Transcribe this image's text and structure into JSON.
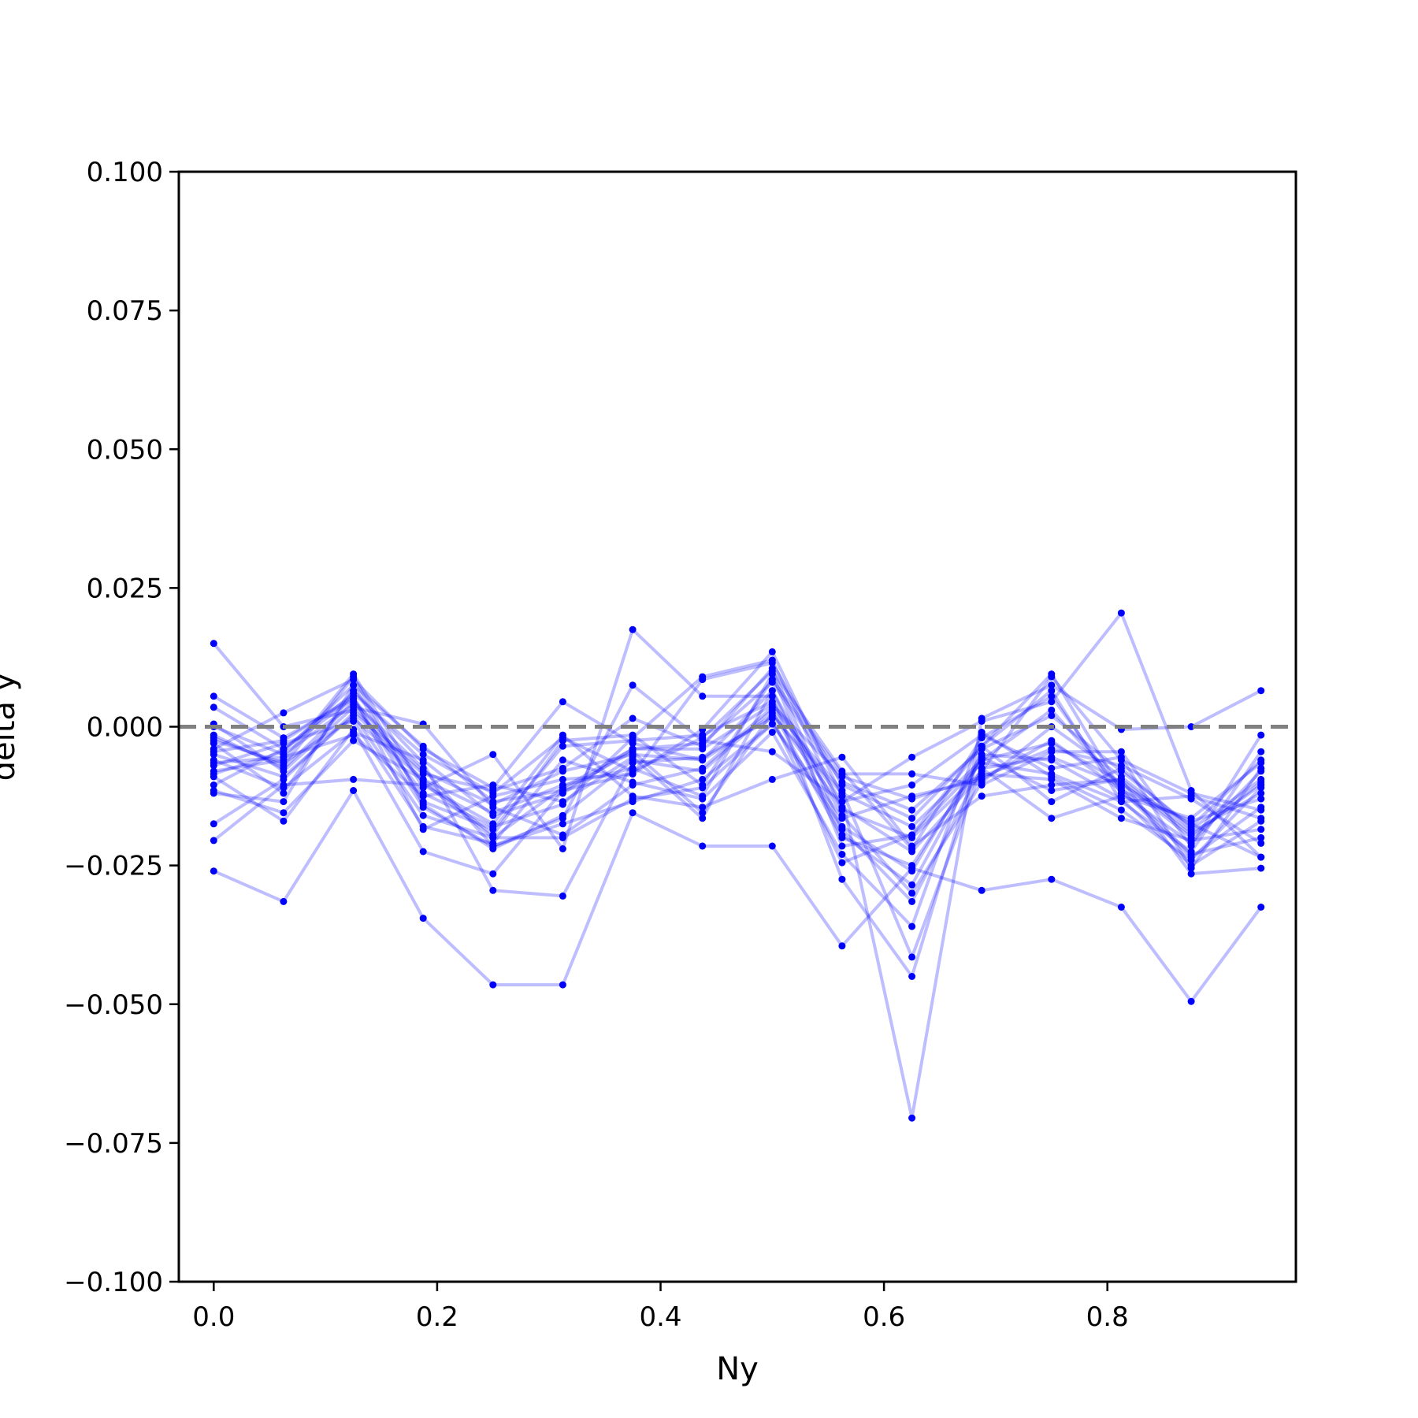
{
  "chart_data": {
    "type": "line",
    "xlabel": "Ny",
    "ylabel": "delta y",
    "xlim": [
      -0.03125,
      0.96875
    ],
    "ylim": [
      -0.1,
      0.1
    ],
    "x_ticks": [
      0.0,
      0.2,
      0.4,
      0.6,
      0.8
    ],
    "x_tick_labels": [
      "0.0",
      "0.2",
      "0.4",
      "0.6",
      "0.8"
    ],
    "y_ticks": [
      0.1,
      0.075,
      0.05,
      0.025,
      0.0,
      -0.025,
      -0.05,
      -0.075,
      -0.1
    ],
    "y_tick_labels": [
      "0.100",
      "0.075",
      "0.050",
      "0.025",
      "0.000",
      "−0.025",
      "−0.050",
      "−0.075",
      "−0.100"
    ],
    "reference_line": {
      "y": 0.0,
      "style": "dashed",
      "color": "#808080"
    },
    "series_color": "#0000ff",
    "grid": false,
    "x": [
      0.0,
      0.0625,
      0.125,
      0.1875,
      0.25,
      0.3125,
      0.375,
      0.4375,
      0.5,
      0.5625,
      0.625,
      0.6875,
      0.75,
      0.8125,
      0.875,
      0.9375
    ],
    "series": [
      {
        "values": [
          0.015,
          0.0,
          0.003,
          -0.008,
          -0.014,
          -0.008,
          -0.005,
          -0.006,
          0.002,
          -0.012,
          -0.018,
          -0.006,
          -0.003,
          -0.01,
          -0.02,
          -0.01
        ]
      },
      {
        "values": [
          0.0055,
          -0.002,
          0.005,
          -0.01,
          -0.02,
          -0.011,
          -0.004,
          -0.003,
          0.008,
          -0.01,
          -0.015,
          -0.004,
          0.002,
          -0.008,
          -0.018,
          -0.006
        ]
      },
      {
        "values": [
          0.0035,
          -0.004,
          0.006,
          -0.005,
          -0.012,
          -0.002,
          -0.008,
          -0.002,
          0.01,
          -0.008,
          -0.022,
          -0.002,
          0.0055,
          -0.012,
          -0.021,
          -0.008
        ]
      },
      {
        "values": [
          0.0,
          -0.005,
          0.004,
          -0.012,
          -0.018,
          -0.014,
          -0.002,
          0.009,
          0.012,
          -0.015,
          -0.02,
          -0.008,
          0.009,
          -0.006,
          -0.012,
          -0.015
        ]
      },
      {
        "values": [
          -0.002,
          -0.007,
          0.009,
          -0.014,
          -0.022,
          -0.016,
          -0.006,
          -0.008,
          0.003,
          -0.02,
          -0.025,
          -0.006,
          0.003,
          -0.011,
          -0.023,
          -0.02
        ]
      },
      {
        "values": [
          -0.004,
          0.0025,
          0.0085,
          -0.004,
          -0.011,
          0.0045,
          -0.003,
          -0.006,
          0.0065,
          -0.016,
          -0.03,
          -0.01,
          0.0,
          -0.009,
          -0.019,
          -0.012
        ]
      },
      {
        "values": [
          -0.005,
          -0.009,
          0.002,
          -0.016,
          -0.02,
          -0.02,
          -0.013,
          -0.011,
          0.0005,
          -0.018,
          -0.026,
          -0.005,
          -0.006,
          -0.013,
          -0.025,
          -0.017
        ]
      },
      {
        "values": [
          -0.006,
          -0.011,
          -0.001,
          -0.006,
          -0.016,
          -0.012,
          -0.004,
          -0.004,
          0.004,
          -0.009,
          -0.013,
          -0.009,
          -0.004,
          -0.007,
          -0.013,
          -0.021
        ]
      },
      {
        "values": [
          -0.007,
          -0.003,
          0.001,
          -0.018,
          -0.021,
          -0.006,
          -0.01,
          -0.013,
          -0.001,
          -0.023,
          -0.036,
          -0.001,
          -0.009,
          -0.015,
          -0.024,
          -0.011
        ]
      },
      {
        "values": [
          -0.008,
          -0.006,
          0.0095,
          -0.011,
          -0.005,
          -0.022,
          0.0175,
          0.0055,
          0.0055,
          -0.0275,
          -0.045,
          -0.0035,
          0.0095,
          -0.0115,
          -0.017,
          -0.013
        ]
      },
      {
        "values": [
          -0.0105,
          -0.004,
          0.005,
          -0.0145,
          -0.0215,
          -0.0165,
          0.0075,
          -0.0025,
          -0.0045,
          -0.0135,
          -0.0055,
          0.001,
          0.0045,
          0.0205,
          -0.0115,
          -0.0235
        ]
      },
      {
        "values": [
          -0.012,
          -0.0135,
          0.0075,
          -0.0035,
          -0.0135,
          -0.0115,
          -0.0085,
          -0.0005,
          0.0135,
          -0.0125,
          -0.0705,
          0.0015,
          0.0075,
          -0.0005,
          0.0,
          0.0065
        ]
      },
      {
        "values": [
          -0.0115,
          -0.0155,
          -0.0025,
          -0.0095,
          -0.0195,
          -0.0025,
          -0.0015,
          -0.0105,
          0.0085,
          -0.0085,
          -0.0085,
          -0.0105,
          -0.0045,
          -0.0045,
          -0.0215,
          -0.0015
        ]
      },
      {
        "values": [
          -0.0175,
          -0.0095,
          0.0025,
          -0.0085,
          -0.0115,
          -0.0075,
          0.0015,
          -0.0035,
          0.0105,
          -0.0185,
          -0.0315,
          -0.0075,
          -0.0165,
          -0.0125,
          -0.0165,
          -0.0065
        ]
      },
      {
        "values": [
          -0.0205,
          -0.0105,
          -0.0095,
          -0.0105,
          -0.0175,
          -0.0015,
          -0.0125,
          -0.0145,
          -0.0095,
          -0.0055,
          -0.0215,
          -0.0125,
          -0.0105,
          -0.0095,
          -0.0265,
          -0.0255
        ]
      },
      {
        "values": [
          -0.026,
          -0.0315,
          -0.0115,
          -0.0345,
          -0.0465,
          -0.0465,
          -0.0155,
          -0.0215,
          -0.0215,
          -0.0395,
          -0.0255,
          -0.0295,
          -0.0275,
          -0.0325,
          -0.0495,
          -0.0325
        ]
      },
      {
        "values": [
          -0.003,
          -0.012,
          0.0065,
          -0.0065,
          -0.0295,
          -0.0305,
          -0.0065,
          -0.0055,
          0.0015,
          -0.0245,
          -0.0195,
          -0.0035,
          -0.0135,
          -0.0075,
          -0.0185,
          -0.0095
        ]
      },
      {
        "values": [
          -0.009,
          -0.017,
          -0.0005,
          -0.0225,
          -0.0265,
          -0.0115,
          -0.0045,
          -0.0155,
          0.0025,
          -0.0145,
          -0.0225,
          -0.0085,
          -0.0095,
          -0.0165,
          -0.0205,
          -0.0185
        ]
      },
      {
        "values": [
          0.0005,
          -0.008,
          0.0035,
          0.0005,
          -0.0145,
          -0.0195,
          -0.0105,
          -0.0075,
          0.0035,
          -0.0115,
          -0.0415,
          -0.0075,
          -0.0055,
          -0.0105,
          -0.0175,
          -0.0235
        ]
      },
      {
        "values": [
          -0.0045,
          -0.0025,
          0.0055,
          -0.0185,
          -0.0125,
          -0.0095,
          -0.0085,
          0.0085,
          0.0115,
          -0.0105,
          -0.0165,
          -0.0035,
          0.0065,
          -0.0135,
          -0.0225,
          -0.0045
        ]
      },
      {
        "values": [
          -0.0065,
          -0.0055,
          -0.0015,
          -0.0125,
          -0.0105,
          -0.0135,
          -0.0055,
          -0.0165,
          0.0065,
          -0.0195,
          -0.0285,
          -0.0055,
          -0.0115,
          -0.0095,
          -0.0195,
          -0.0105
        ]
      },
      {
        "values": [
          -0.0015,
          -0.0075,
          0.0045,
          -0.0075,
          -0.0215,
          -0.0175,
          -0.0135,
          -0.0095,
          0.0005,
          -0.0165,
          -0.0125,
          -0.0095,
          -0.0025,
          -0.0115,
          -0.0235,
          -0.0145
        ]
      },
      {
        "values": [
          -0.0085,
          -0.0045,
          0.0075,
          -0.0135,
          -0.0185,
          -0.0035,
          -0.0025,
          -0.0015,
          0.0045,
          -0.0135,
          -0.0105,
          -0.0015,
          -0.0075,
          -0.0055,
          -0.0255,
          -0.0075
        ]
      },
      {
        "values": [
          -0.0025,
          -0.0065,
          0.0015,
          -0.0095,
          -0.0155,
          -0.0105,
          -0.0075,
          -0.0125,
          0.0095,
          -0.0215,
          -0.0195,
          -0.0065,
          -0.0085,
          -0.0135,
          -0.0125,
          -0.0165
        ]
      }
    ]
  }
}
